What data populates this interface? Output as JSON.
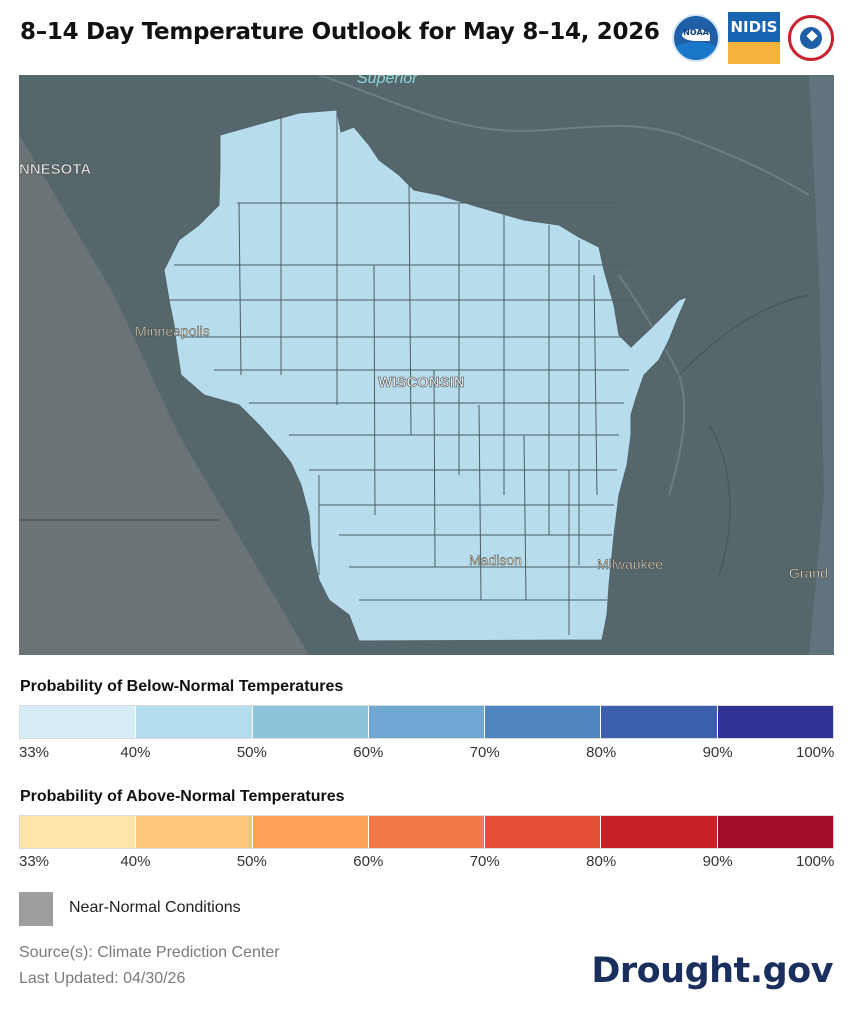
{
  "header": {
    "title": "8–14 Day Temperature Outlook for May 8–14, 2026",
    "logos": [
      {
        "name": "noaa-logo",
        "text": "NOAA"
      },
      {
        "name": "nidis-logo",
        "text": "NIDIS"
      },
      {
        "name": "nws-logo",
        "text": "NATIONAL WEATHER SERVICE"
      }
    ]
  },
  "map": {
    "labels": {
      "lake_superior": "Superior",
      "minnesota": "NNESOTA",
      "minneapolis": "Minneapolis",
      "wisconsin": "WISCONSIN",
      "madison": "Madison",
      "milwaukee": "Milwaukee",
      "grand": "Grand"
    },
    "colors": {
      "background": "#56676c",
      "outlook_below_33_40": "#b7dcec",
      "near_normal_overlay": "#9e9e9e"
    },
    "outlook_category": "Below-Normal 33–40%"
  },
  "legend_below": {
    "title": "Probability of Below-Normal Temperatures",
    "colors": [
      "#d6edf6",
      "#b3dcec",
      "#8ec3dc",
      "#6fa8d3",
      "#4f86c2",
      "#3b5fae",
      "#2f3494"
    ],
    "ticks": [
      "33%",
      "40%",
      "50%",
      "60%",
      "70%",
      "80%",
      "90%",
      "100%"
    ]
  },
  "legend_above": {
    "title": "Probability of Above-Normal Temperatures",
    "colors": [
      "#fde4ab",
      "#fdc67a",
      "#fca25a",
      "#f5784a",
      "#e44f34",
      "#c72227",
      "#a00b26"
    ],
    "ticks": [
      "33%",
      "40%",
      "50%",
      "60%",
      "70%",
      "80%",
      "90%",
      "100%"
    ]
  },
  "near_normal": {
    "label": "Near-Normal Conditions",
    "color": "#9e9e9e"
  },
  "footer": {
    "source": "Source(s): Climate Prediction Center",
    "updated": "Last Updated: 04/30/26",
    "brand": "Drought.gov"
  }
}
